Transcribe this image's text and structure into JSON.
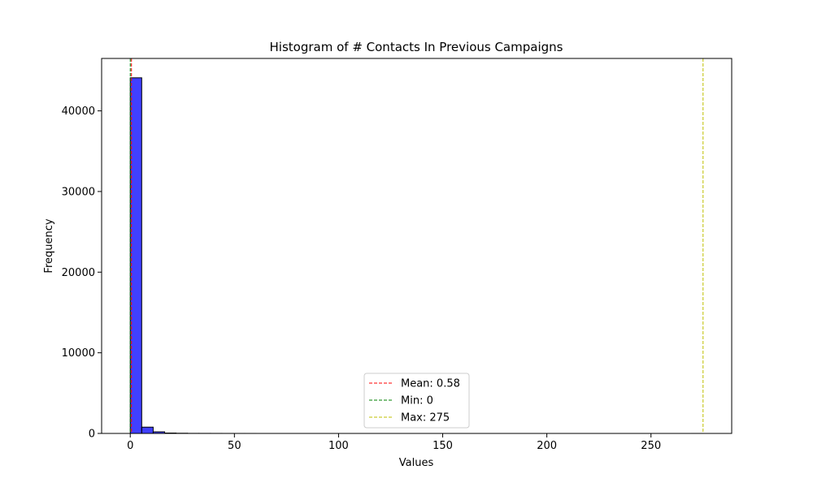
{
  "chart_data": {
    "type": "bar",
    "title": "Histogram of # Contacts In Previous Campaigns",
    "xlabel": "Values",
    "ylabel": "Frequency",
    "xlim": [
      -13.75,
      288.75
    ],
    "ylim": [
      0,
      46500
    ],
    "x_ticks": [
      0,
      50,
      100,
      150,
      200,
      250
    ],
    "y_ticks": [
      0,
      10000,
      20000,
      30000,
      40000
    ],
    "bin_width": 5.5,
    "bins": [
      {
        "start": 0,
        "end": 5.5,
        "count": 44100
      },
      {
        "start": 5.5,
        "end": 11,
        "count": 780
      },
      {
        "start": 11,
        "end": 16.5,
        "count": 200
      },
      {
        "start": 16.5,
        "end": 22,
        "count": 50
      },
      {
        "start": 22,
        "end": 27.5,
        "count": 25
      },
      {
        "start": 27.5,
        "end": 33,
        "count": 10
      },
      {
        "start": 33,
        "end": 38.5,
        "count": 8
      },
      {
        "start": 38.5,
        "end": 44,
        "count": 5
      },
      {
        "start": 44,
        "end": 49.5,
        "count": 3
      },
      {
        "start": 49.5,
        "end": 55,
        "count": 2
      },
      {
        "start": 55,
        "end": 60.5,
        "count": 1
      },
      {
        "start": 269.5,
        "end": 275,
        "count": 1
      }
    ],
    "bar_color": "#0000ff",
    "bar_edge_color": "#000000",
    "reference_lines": [
      {
        "label": "Mean: 0.58",
        "value": 0.58,
        "color": "#ff0000"
      },
      {
        "label": "Min: 0",
        "value": 0,
        "color": "#008000"
      },
      {
        "label": "Max: 275",
        "value": 275,
        "color": "#bfbf00"
      }
    ],
    "legend_position": "bottom-center",
    "grid": false
  }
}
